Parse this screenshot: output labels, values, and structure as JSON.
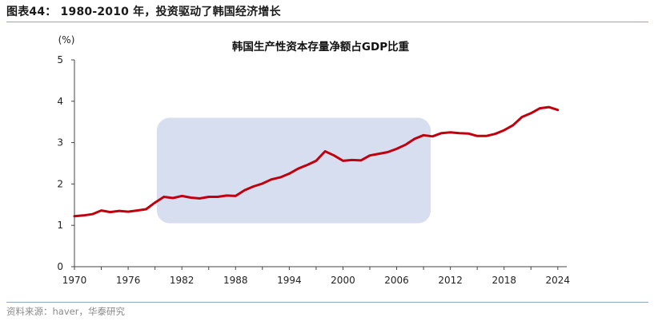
{
  "header": {
    "figure_title": "图表44：  1980-2010 年，投资驱动了韩国经济增长"
  },
  "footer": {
    "source": "资料来源：haver，华泰研究"
  },
  "colors": {
    "line": "#c0000d",
    "highlight": "#d6def0",
    "axis": "#444444",
    "rule": "#8fa6c0"
  },
  "chart_data": {
    "type": "line",
    "title": "韩国生产性资本存量净额占GDP比重",
    "ylabel": "(%)",
    "xlabel": "",
    "ylim": [
      0,
      5
    ],
    "xlim": [
      1970,
      2025
    ],
    "yticks": [
      "0",
      "1",
      "2",
      "3",
      "4",
      "5"
    ],
    "xticks": [
      "1970",
      "1976",
      "1982",
      "1988",
      "1994",
      "2000",
      "2006",
      "2012",
      "2018",
      "2024"
    ],
    "grid": false,
    "legend": "none",
    "highlight_region": {
      "x": [
        1979.2,
        2009.8
      ],
      "y": [
        1.05,
        3.6
      ]
    },
    "x": [
      1970,
      1971,
      1972,
      1973,
      1974,
      1975,
      1976,
      1977,
      1978,
      1979,
      1980,
      1981,
      1982,
      1983,
      1984,
      1985,
      1986,
      1987,
      1988,
      1989,
      1990,
      1991,
      1992,
      1993,
      1994,
      1995,
      1996,
      1997,
      1998,
      1999,
      2000,
      2001,
      2002,
      2003,
      2004,
      2005,
      2006,
      2007,
      2008,
      2009,
      2010,
      2011,
      2012,
      2013,
      2014,
      2015,
      2016,
      2017,
      2018,
      2019,
      2020,
      2021,
      2022,
      2023,
      2024
    ],
    "series": [
      {
        "values": [
          1.22,
          1.24,
          1.27,
          1.36,
          1.32,
          1.35,
          1.33,
          1.36,
          1.39,
          1.55,
          1.69,
          1.66,
          1.71,
          1.67,
          1.65,
          1.69,
          1.69,
          1.72,
          1.71,
          1.85,
          1.94,
          2.01,
          2.11,
          2.16,
          2.25,
          2.37,
          2.46,
          2.56,
          2.79,
          2.69,
          2.56,
          2.58,
          2.57,
          2.69,
          2.73,
          2.77,
          2.85,
          2.95,
          3.09,
          3.18,
          3.15,
          3.23,
          3.25,
          3.23,
          3.22,
          3.16,
          3.16,
          3.21,
          3.3,
          3.42,
          3.62,
          3.71,
          3.83,
          3.86,
          3.79
        ]
      }
    ]
  }
}
